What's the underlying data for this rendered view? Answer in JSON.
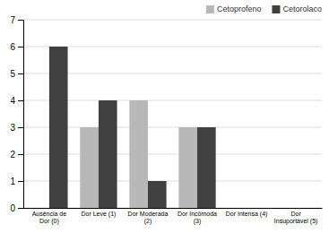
{
  "chart_data": {
    "type": "bar",
    "categories": [
      "Ausência de\nDor (0)",
      "Dor Leve (1)",
      "Dor Moderada\n(2)",
      "Dor Incômoda\n(3)",
      "Dor Intensa (4)",
      "Dor\nInsuportável (5)"
    ],
    "series": [
      {
        "name": "Cetoprofeno",
        "color": "#b8b8b8",
        "values": [
          0,
          3,
          4,
          3,
          0,
          0
        ]
      },
      {
        "name": "Cetorolaco",
        "color": "#404040",
        "values": [
          6,
          4,
          1,
          3,
          0,
          0
        ]
      }
    ],
    "ylim": [
      0,
      7
    ],
    "yticks": [
      0,
      1,
      2,
      3,
      4,
      5,
      6,
      7
    ],
    "grid": true,
    "legend": "upper right"
  }
}
